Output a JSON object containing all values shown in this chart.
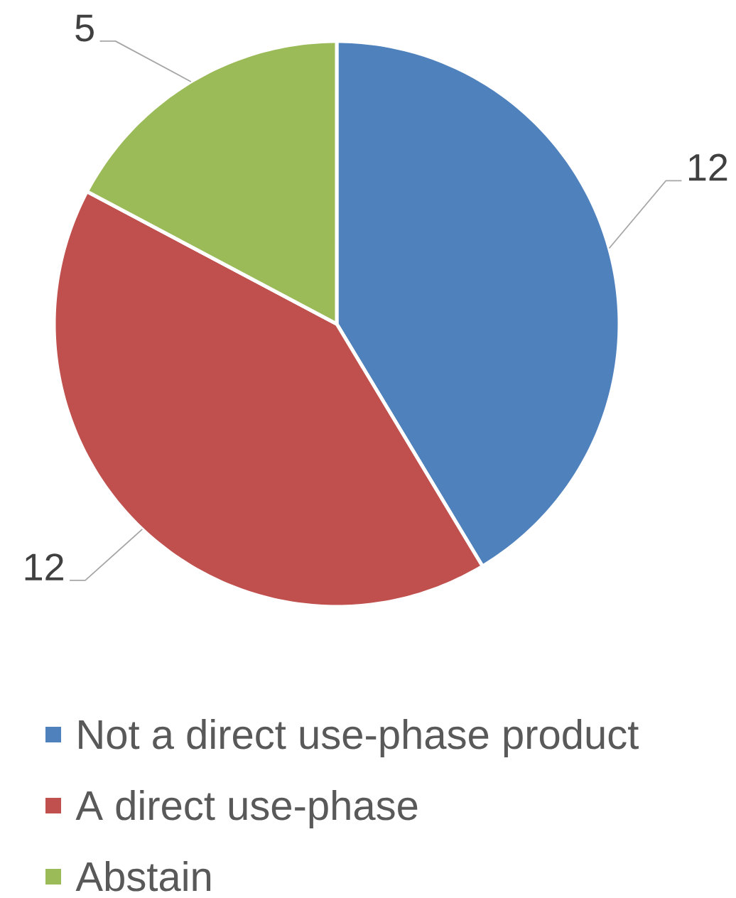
{
  "chart_data": {
    "type": "pie",
    "categories": [
      "Not a direct use-phase product",
      "A direct use-phase",
      "Abstain"
    ],
    "values": [
      12,
      12,
      5
    ],
    "colors": [
      "#4f81bd",
      "#c0504d",
      "#9bbb59"
    ],
    "data_labels": true,
    "legend": "bottom"
  }
}
